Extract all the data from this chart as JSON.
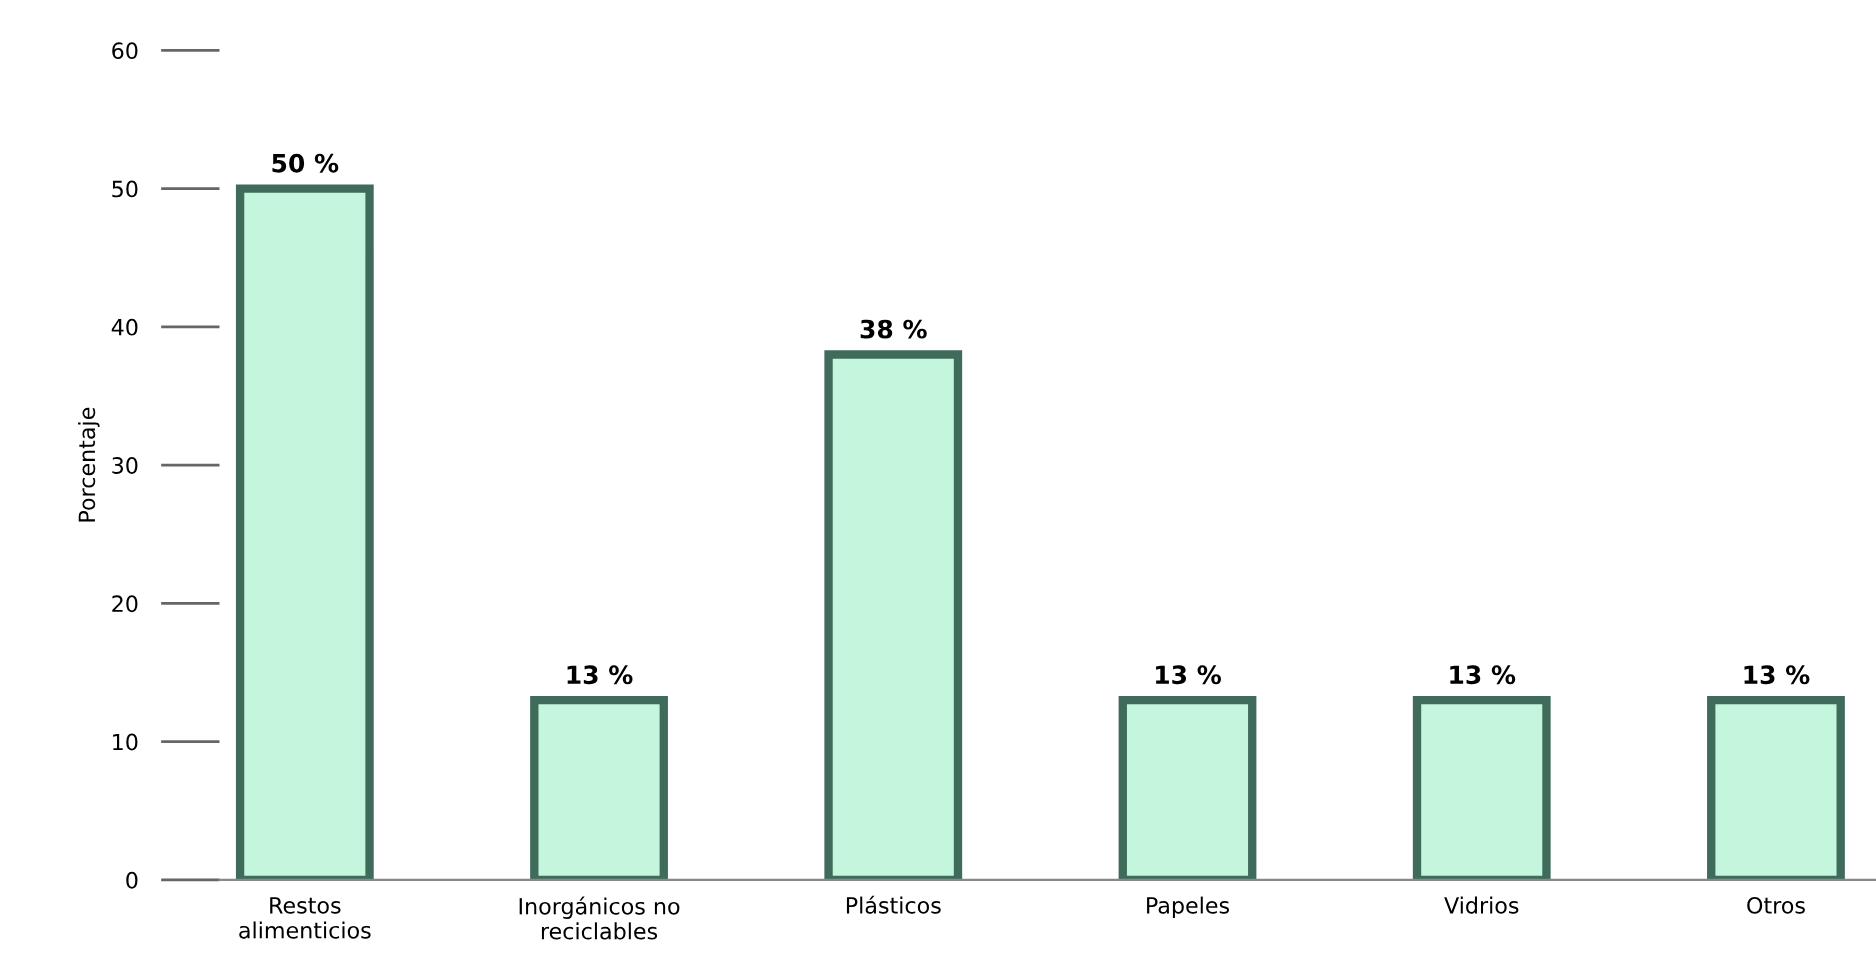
{
  "chart_data": {
    "type": "bar",
    "ylabel": "Porcentaje",
    "categories": [
      "Restos alimenticios",
      "Inorgánicos no reciclables",
      "Plásticos",
      "Papeles",
      "Vidrios",
      "Otros"
    ],
    "values": [
      50,
      13,
      38,
      13,
      13,
      13
    ],
    "value_labels": [
      "50 %",
      "13 %",
      "38 %",
      "13 %",
      "13 %",
      "13 %"
    ],
    "color": "#c4f5dd",
    "ylim": [
      0,
      60
    ],
    "yticks": [
      0,
      10,
      20,
      30,
      40,
      50,
      60
    ],
    "grid": false
  }
}
